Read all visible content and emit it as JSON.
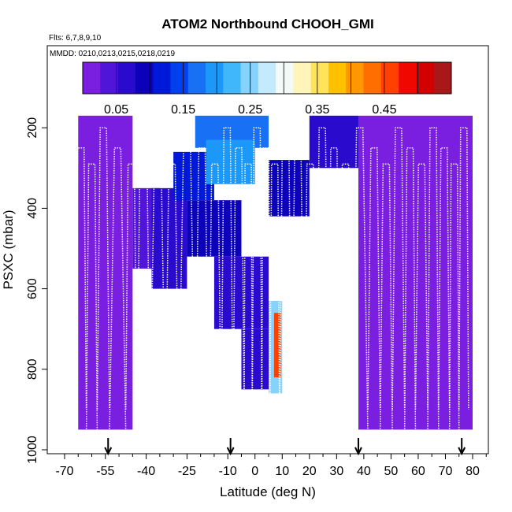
{
  "chart_data": {
    "type": "heatmap",
    "title": "ATOM2 Northbound CHOOH_GMI",
    "subtitle_flights": "Flts: 6,7,8,9,10",
    "subtitle_dates": "MMDD: 0210,0213,0215,0218,0219",
    "xlabel": "Latitude (deg N)",
    "ylabel": "PSXC (mbar)",
    "xlim": [
      -70,
      85
    ],
    "ylim": [
      1000,
      0
    ],
    "x_tick_labels": [
      "-70",
      "-55",
      "-40",
      "-25",
      "-10",
      "0",
      "10",
      "20",
      "30",
      "40",
      "50",
      "60",
      "70",
      "80"
    ],
    "x_tick_values": [
      -70,
      -55,
      -40,
      -25,
      -10,
      0,
      10,
      20,
      30,
      40,
      50,
      60,
      70,
      80
    ],
    "x_minor_ticks": [
      -65,
      -60,
      -50,
      -45,
      -35,
      -30,
      -20,
      -15,
      -5,
      5,
      15,
      25,
      35,
      45,
      55,
      65,
      75,
      85
    ],
    "y_tick_labels": [
      "200",
      "400",
      "600",
      "800",
      "1000"
    ],
    "y_tick_values": [
      200,
      400,
      600,
      800,
      1000
    ],
    "colorbar": {
      "range": [
        0,
        0.55
      ],
      "tick_labels": [
        "0.05",
        "0.15",
        "0.25",
        "0.35",
        "0.45"
      ],
      "tick_values": [
        0.05,
        0.15,
        0.25,
        0.35,
        0.45
      ],
      "colors": [
        "#7a1fe0",
        "#5015d8",
        "#2a0acc",
        "#0c00b8",
        "#0018d8",
        "#0040ee",
        "#1870f5",
        "#1b98f8",
        "#40b6fb",
        "#85d2fd",
        "#c4eaff",
        "#f3fbf8",
        "#fff5b8",
        "#ffe45a",
        "#ffc000",
        "#ff9800",
        "#ff6e00",
        "#ff4000",
        "#f00800",
        "#d30000",
        "#a81818"
      ]
    },
    "section_arrows_lat": [
      -54,
      -9,
      38,
      76
    ],
    "flight_profile_lats": [
      -68.5,
      -66,
      -62,
      -58,
      -53.5,
      -47.5,
      -43.5,
      -38.5,
      -33,
      -28,
      -22,
      -17,
      -12.5,
      -8,
      -4,
      -1,
      2.5,
      5.5,
      9,
      13.5,
      18,
      22.5,
      27,
      31,
      35.5,
      41.5,
      46,
      50.5,
      55,
      59,
      63.5,
      67.5,
      71.5,
      75,
      78.5
    ],
    "field": [
      {
        "lat": [
          -65,
          -45
        ],
        "p": [
          170,
          950
        ],
        "v": 0.012
      },
      {
        "lat": [
          -45,
          -35
        ],
        "p": [
          350,
          550
        ],
        "v": 0.04
      },
      {
        "lat": [
          -38,
          -25
        ],
        "p": [
          350,
          600
        ],
        "v": 0.06
      },
      {
        "lat": [
          -30,
          -15
        ],
        "p": [
          260,
          380
        ],
        "v": 0.12
      },
      {
        "lat": [
          -22,
          5
        ],
        "p": [
          170,
          250
        ],
        "v": 0.18
      },
      {
        "lat": [
          -18,
          0
        ],
        "p": [
          230,
          340
        ],
        "v": 0.2
      },
      {
        "lat": [
          -25,
          -5
        ],
        "p": [
          380,
          520
        ],
        "v": 0.08
      },
      {
        "lat": [
          -15,
          5
        ],
        "p": [
          520,
          700
        ],
        "v": 0.07
      },
      {
        "lat": [
          -5,
          5
        ],
        "p": [
          700,
          850
        ],
        "v": 0.06
      },
      {
        "lat": [
          5,
          20
        ],
        "p": [
          280,
          420
        ],
        "v": 0.08
      },
      {
        "lat": [
          20,
          38
        ],
        "p": [
          170,
          300
        ],
        "v": 0.06
      },
      {
        "lat": [
          5,
          10
        ],
        "p": [
          630,
          860
        ],
        "v": 0.25
      },
      {
        "lat": [
          7,
          9.5
        ],
        "p": [
          660,
          820
        ],
        "v": 0.45
      },
      {
        "lat": [
          38,
          80
        ],
        "p": [
          170,
          950
        ],
        "v": 0.012
      }
    ]
  }
}
